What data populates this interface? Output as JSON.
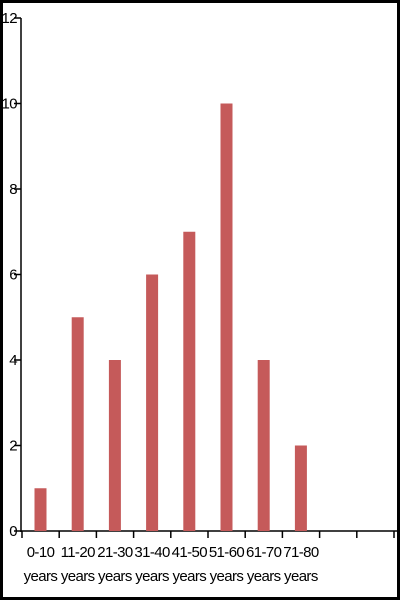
{
  "chart_data": {
    "type": "bar",
    "categories": [
      [
        "0-10",
        "years"
      ],
      [
        "11-20",
        "years"
      ],
      [
        "21-30",
        "years"
      ],
      [
        "31-40",
        "years"
      ],
      [
        "41-50",
        "years"
      ],
      [
        "51-60",
        "years"
      ],
      [
        "61-70",
        "years"
      ],
      [
        "71-80",
        "years"
      ]
    ],
    "values": [
      1,
      5,
      4,
      6,
      7,
      10,
      4,
      2
    ],
    "yticks": [
      "0",
      "2",
      "4",
      "6",
      "8",
      "10",
      "12"
    ],
    "ylim": [
      0,
      12
    ],
    "bar_color": "#c55a5a",
    "grid": false,
    "title": "",
    "xlabel": "",
    "ylabel": ""
  }
}
